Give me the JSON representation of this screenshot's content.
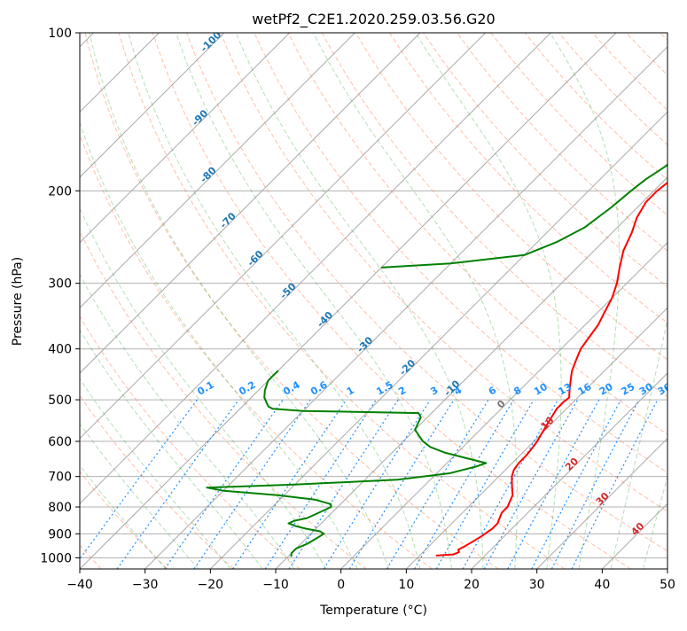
{
  "chart_data": {
    "type": "skew-t",
    "title": "wetPf2_C2E1.2020.259.03.56.G20",
    "xlabel": "Temperature (°C)",
    "ylabel": "Pressure (hPa)",
    "xlim": [
      -40,
      50
    ],
    "ylim": [
      1050,
      100
    ],
    "y_scale": "log",
    "x_ticks": [
      -40,
      -30,
      -20,
      -10,
      0,
      10,
      20,
      30,
      40,
      50
    ],
    "y_ticks": [
      100,
      200,
      300,
      400,
      500,
      600,
      700,
      800,
      900,
      1000
    ],
    "grid": true,
    "colors": {
      "temperature": "#ff0000",
      "dewpoint": "#008000",
      "isotherm_label": "#1f77b4",
      "mixing_ratio": "#1e90ff",
      "dry_adiabat": "#ff7f50",
      "moist_adiabat": "#2ca02c",
      "isotherm_red_label": "#d62728"
    },
    "isotherm_labels": [
      "-100",
      "-90",
      "-80",
      "-70",
      "-60",
      "-50",
      "-40",
      "-30",
      "-20",
      "-10",
      "0",
      "10",
      "20",
      "30",
      "40"
    ],
    "mixing_ratio_labels": [
      "0.1",
      "0.2",
      "0.4",
      "0.6",
      "1",
      "1.5",
      "2",
      "3",
      "4",
      "6",
      "8",
      "10",
      "13",
      "16",
      "20",
      "25",
      "30",
      "36"
    ],
    "series": [
      {
        "values": [
          [
            990,
            12.5
          ],
          [
            985,
            15
          ],
          [
            975,
            15.5
          ],
          [
            965,
            15
          ],
          [
            950,
            15.5
          ],
          [
            930,
            16
          ],
          [
            910,
            16.5
          ],
          [
            880,
            17
          ],
          [
            860,
            17
          ],
          [
            840,
            16.5
          ],
          [
            820,
            16
          ],
          [
            800,
            16
          ],
          [
            780,
            15.5
          ],
          [
            760,
            15
          ],
          [
            740,
            14
          ],
          [
            720,
            13
          ],
          [
            700,
            12
          ],
          [
            680,
            11.3
          ],
          [
            660,
            11
          ],
          [
            640,
            11
          ],
          [
            620,
            10.8
          ],
          [
            600,
            10.5
          ],
          [
            580,
            10
          ],
          [
            560,
            9.5
          ],
          [
            540,
            9
          ],
          [
            520,
            8.5
          ],
          [
            505,
            8.5
          ],
          [
            495,
            8.7
          ],
          [
            485,
            8
          ],
          [
            470,
            7
          ],
          [
            455,
            6
          ],
          [
            440,
            5
          ],
          [
            420,
            4
          ],
          [
            400,
            3
          ],
          [
            380,
            2.5
          ],
          [
            360,
            2
          ],
          [
            340,
            1
          ],
          [
            320,
            0
          ],
          [
            300,
            -1.5
          ],
          [
            280,
            -3.5
          ],
          [
            260,
            -5.5
          ],
          [
            240,
            -7
          ],
          [
            225,
            -8.5
          ],
          [
            210,
            -9.5
          ],
          [
            200,
            -9.5
          ],
          [
            190,
            -9
          ],
          [
            180,
            -8
          ],
          [
            170,
            -7.5
          ],
          [
            160,
            -7
          ],
          [
            150,
            -6
          ],
          [
            140,
            -4.5
          ],
          [
            130,
            -3
          ],
          [
            125,
            -2
          ],
          [
            120,
            -1.5
          ],
          [
            115,
            -1
          ],
          [
            110,
            0
          ],
          [
            105,
            1
          ],
          [
            100,
            2
          ]
        ]
      },
      {
        "values": [
          [
            995,
            -9.5
          ],
          [
            980,
            -10
          ],
          [
            960,
            -10
          ],
          [
            940,
            -9
          ],
          [
            920,
            -8.5
          ],
          [
            900,
            -8
          ],
          [
            890,
            -9
          ],
          [
            880,
            -11.5
          ],
          [
            870,
            -13.5
          ],
          [
            860,
            -15
          ],
          [
            850,
            -14.5
          ],
          [
            840,
            -13
          ],
          [
            820,
            -12
          ],
          [
            800,
            -11
          ],
          [
            790,
            -11.5
          ],
          [
            775,
            -14.5
          ],
          [
            760,
            -21
          ],
          [
            745,
            -30
          ],
          [
            735,
            -33
          ],
          [
            725,
            -20
          ],
          [
            710,
            -5
          ],
          [
            690,
            2
          ],
          [
            670,
            5
          ],
          [
            660,
            6
          ],
          [
            645,
            2
          ],
          [
            630,
            -2
          ],
          [
            615,
            -5
          ],
          [
            600,
            -7
          ],
          [
            585,
            -8.5
          ],
          [
            570,
            -10
          ],
          [
            555,
            -10.5
          ],
          [
            540,
            -11
          ],
          [
            530,
            -12
          ],
          [
            525,
            -30
          ],
          [
            520,
            -35
          ],
          [
            515,
            -36
          ],
          [
            505,
            -37
          ],
          [
            495,
            -38
          ],
          [
            480,
            -39
          ],
          [
            460,
            -40
          ],
          [
            445,
            -40
          ],
          [
            440,
            -40
          ]
        ]
      },
      {
        "values": [
          [
            280,
            -40
          ],
          [
            275,
            -30
          ],
          [
            265,
            -20
          ],
          [
            250,
            -17
          ],
          [
            235,
            -15
          ],
          [
            215,
            -14
          ],
          [
            200,
            -13.5
          ],
          [
            190,
            -13
          ],
          [
            180,
            -12
          ],
          [
            170,
            -11.5
          ],
          [
            160,
            -11
          ],
          [
            150,
            -10
          ],
          [
            140,
            -8.5
          ],
          [
            132,
            -7.5
          ],
          [
            125,
            -6
          ],
          [
            118,
            -4
          ],
          [
            112,
            -2
          ],
          [
            106,
            0
          ],
          [
            100,
            2
          ]
        ]
      }
    ]
  }
}
